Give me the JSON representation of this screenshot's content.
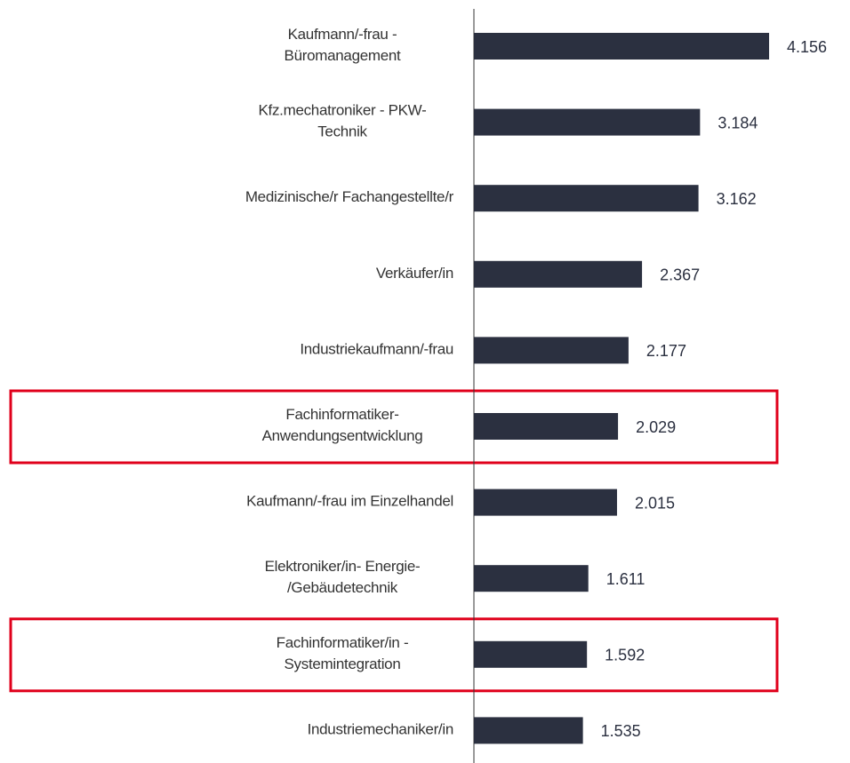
{
  "chart_data": {
    "type": "bar",
    "orientation": "horizontal",
    "categories": [
      "Kaufmann/-frau -\nBüromanagement",
      "Kfz.mechatroniker - PKW-\nTechnik",
      "Medizinische/r Fachangestellte/r",
      "Verkäufer/in",
      "Industriekaufmann/-frau",
      "Fachinformatiker-\nAnwendungsentwicklung",
      "Kaufmann/-frau im Einzelhandel",
      "Elektroniker/in- Energie-\n/Gebäudetechnik",
      "Fachinformatiker/in -\nSystemintegration",
      "Industriemechaniker/in"
    ],
    "values": [
      4156,
      3184,
      3162,
      2367,
      2177,
      2029,
      2015,
      1611,
      1592,
      1535
    ],
    "value_labels": [
      "4.156",
      "3.184",
      "3.162",
      "2.367",
      "2.177",
      "2.029",
      "2.015",
      "1.611",
      "1.592",
      "1.535"
    ],
    "color": "#2b3040",
    "highlights": [
      5,
      8
    ],
    "highlight_color": "#e0001b"
  }
}
